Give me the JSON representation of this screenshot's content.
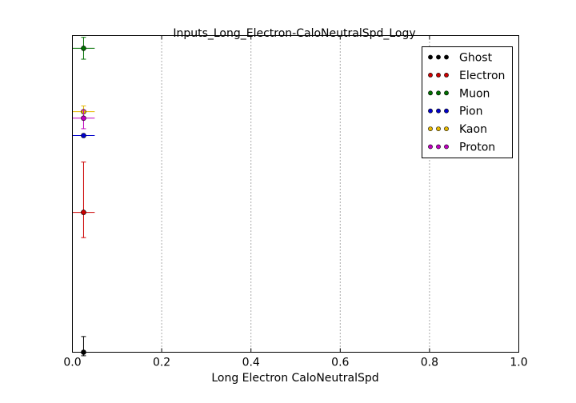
{
  "chart_data": {
    "type": "scatter",
    "title": "Inputs_Long_Electron-CaloNeutralSpd_Logy",
    "xlabel": "Long Electron CaloNeutralSpd",
    "ylabel": "",
    "xlim": [
      0.0,
      1.0
    ],
    "x_ticks": [
      "0.0",
      "0.2",
      "0.4",
      "0.6",
      "0.8",
      "1.0"
    ],
    "y_scale": "log",
    "y_tick_labels_shown": false,
    "grid": "vertical dotted",
    "legend_position": "top-right",
    "series": [
      {
        "name": "Ghost",
        "color": "#000000",
        "x": 0.025,
        "y": 0.0001,
        "xerr": 0.025,
        "yerr_low": 1e-05,
        "yerr_high": 6e-05
      },
      {
        "name": "Electron",
        "color": "#cc0000",
        "x": 0.025,
        "y": 0.0066,
        "xerr": 0.025,
        "yerr_low": 0.0035,
        "yerr_high": 0.0232
      },
      {
        "name": "Muon",
        "color": "#007000",
        "x": 0.025,
        "y": 0.9,
        "xerr": 0.025,
        "yerr_low": 0.25,
        "yerr_high": 0.35
      },
      {
        "name": "Pion",
        "color": "#0000cc",
        "x": 0.025,
        "y": 0.066,
        "xerr": 0.025,
        "yerr_low": 0.0,
        "yerr_high": 0.0
      },
      {
        "name": "Kaon",
        "color": "#e6b800",
        "x": 0.025,
        "y": 0.135,
        "xerr": 0.025,
        "yerr_low": 0.02,
        "yerr_high": 0.025
      },
      {
        "name": "Proton",
        "color": "#c000c0",
        "x": 0.025,
        "y": 0.111,
        "xerr": 0.025,
        "yerr_low": 0.03,
        "yerr_high": 0.03
      }
    ]
  }
}
